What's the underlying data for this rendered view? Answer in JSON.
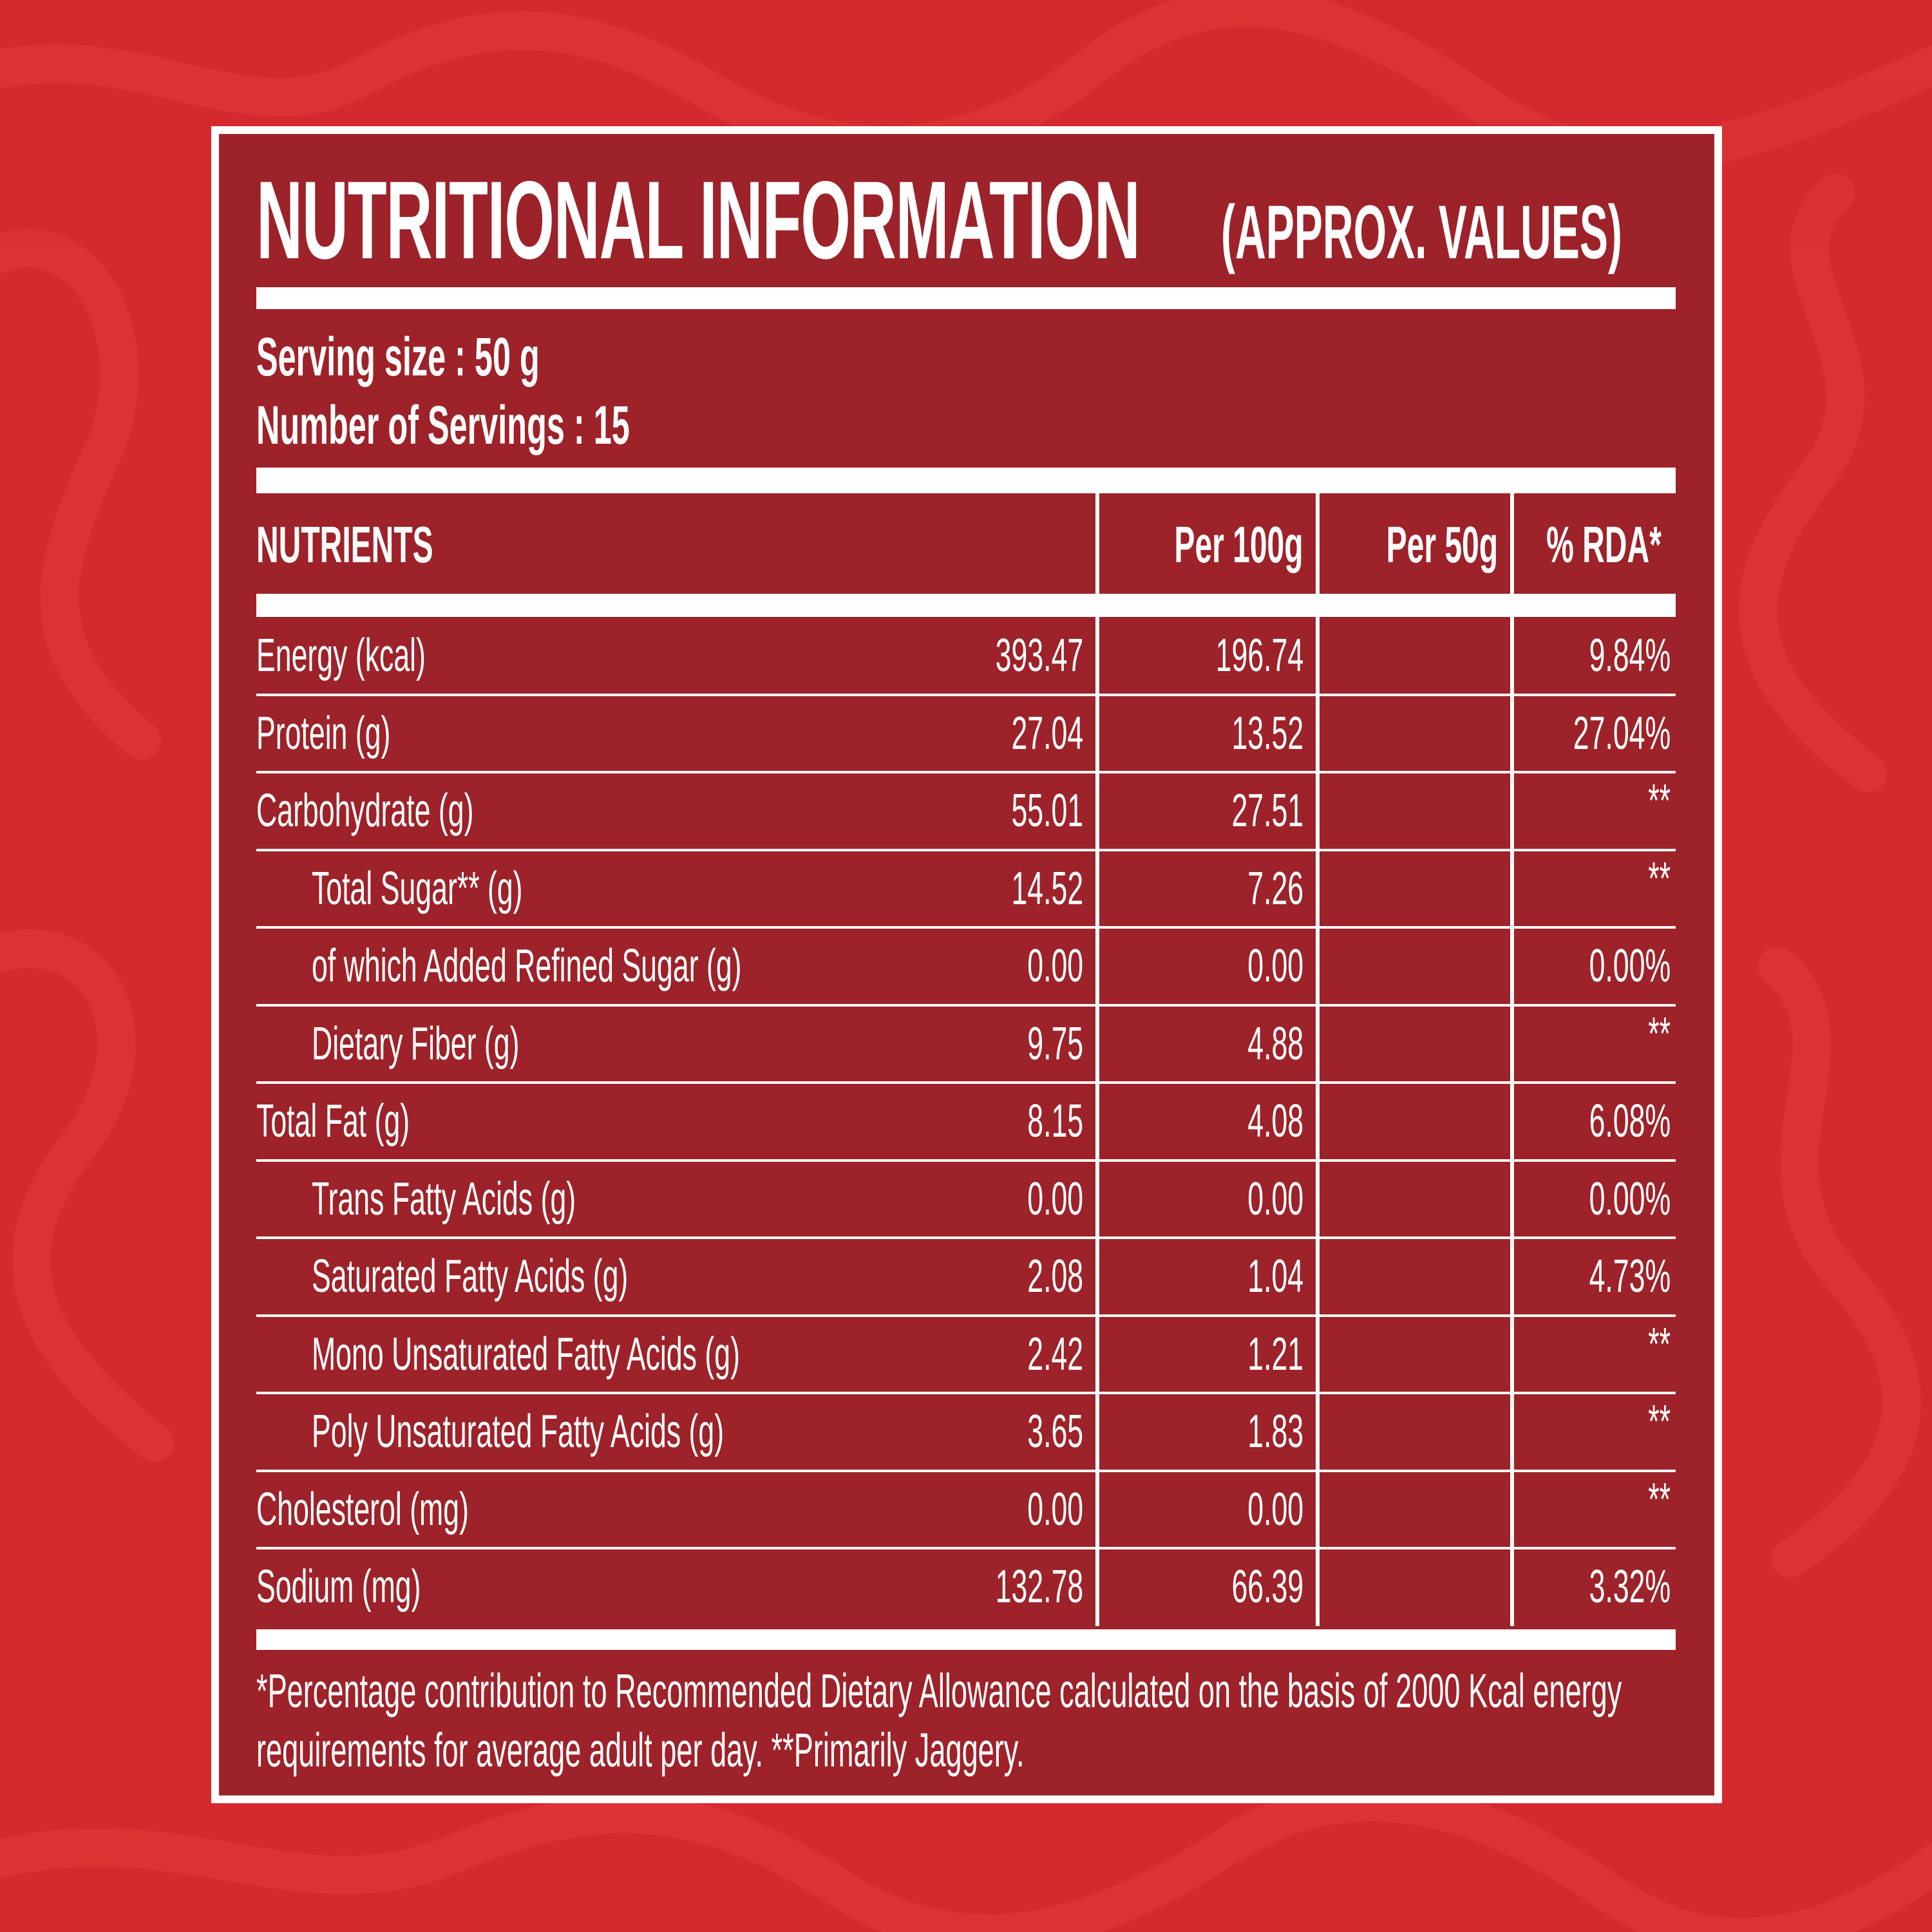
{
  "title": {
    "main": "NUTRITIONAL INFORMATION",
    "sub": "(APPROX. VALUES)"
  },
  "serving": {
    "size": "Serving size : 50 g",
    "count": "Number of Servings : 15"
  },
  "table": {
    "headers": [
      "NUTRIENTS",
      "Per 100g",
      "Per 50g",
      "% RDA*"
    ],
    "rows": [
      {
        "name": "Energy (kcal)",
        "per100": "393.47",
        "per50": "196.74",
        "rda": "9.84%",
        "indent": false
      },
      {
        "name": "Protein (g)",
        "per100": "27.04",
        "per50": "13.52",
        "rda": "27.04%",
        "indent": false
      },
      {
        "name": "Carbohydrate (g)",
        "per100": "55.01",
        "per50": "27.51",
        "rda": "**",
        "indent": false
      },
      {
        "name": "Total Sugar** (g)",
        "per100": "14.52",
        "per50": "7.26",
        "rda": "**",
        "indent": true
      },
      {
        "name": "of which Added Refined Sugar (g)",
        "per100": "0.00",
        "per50": "0.00",
        "rda": "0.00%",
        "indent": true
      },
      {
        "name": "Dietary Fiber (g)",
        "per100": "9.75",
        "per50": "4.88",
        "rda": "**",
        "indent": true
      },
      {
        "name": "Total Fat (g)",
        "per100": "8.15",
        "per50": "4.08",
        "rda": "6.08%",
        "indent": false
      },
      {
        "name": "Trans Fatty Acids (g)",
        "per100": "0.00",
        "per50": "0.00",
        "rda": "0.00%",
        "indent": true
      },
      {
        "name": "Saturated Fatty Acids (g)",
        "per100": "2.08",
        "per50": "1.04",
        "rda": "4.73%",
        "indent": true
      },
      {
        "name": "Mono Unsaturated Fatty Acids (g)",
        "per100": "2.42",
        "per50": "1.21",
        "rda": "**",
        "indent": true
      },
      {
        "name": "Poly Unsaturated Fatty Acids (g)",
        "per100": "3.65",
        "per50": "1.83",
        "rda": "**",
        "indent": true
      },
      {
        "name": "Cholesterol (mg)",
        "per100": "0.00",
        "per50": "0.00",
        "rda": "**",
        "indent": false
      },
      {
        "name": "Sodium (mg)",
        "per100": "132.78",
        "per50": "66.39",
        "rda": "3.32%",
        "indent": false
      }
    ]
  },
  "footnote": "*Percentage contribution to Recommended Dietary Allowance calculated on the basis of 2000 Kcal energy requirements for average adult per day. **Primarily Jaggery.",
  "colors": {
    "background": "#d42a2d",
    "panel": "#9d2229",
    "text": "#ffffff"
  }
}
